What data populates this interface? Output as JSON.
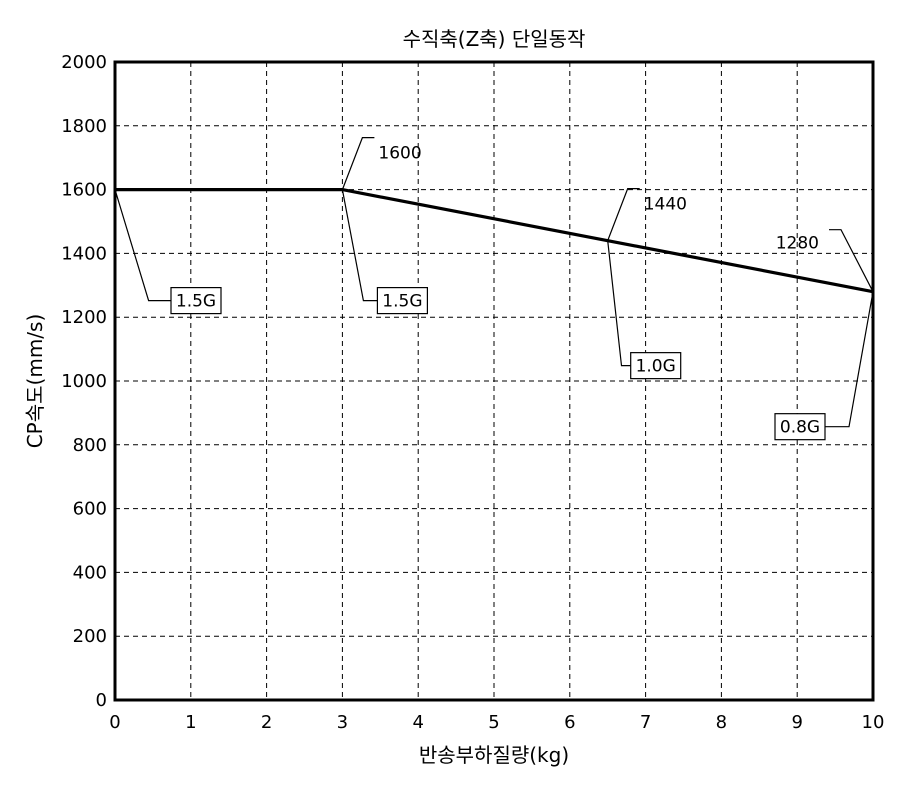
{
  "chart_data": {
    "type": "line",
    "title": "수직축(Z축) 단일동작",
    "xlabel": "반송부하질량(kg)",
    "ylabel": "CP속도(mm/s)",
    "xlim": [
      0,
      10
    ],
    "ylim": [
      0,
      2000
    ],
    "xticks": [
      0,
      1,
      2,
      3,
      4,
      5,
      6,
      7,
      8,
      9,
      10
    ],
    "yticks": [
      0,
      200,
      400,
      600,
      800,
      1000,
      1200,
      1400,
      1600,
      1800,
      2000
    ],
    "grid": true,
    "series": [
      {
        "x": [
          0,
          3,
          10
        ],
        "y": [
          1600,
          1600,
          1280
        ]
      }
    ],
    "value_labels": [
      {
        "text": "1600",
        "x": 3,
        "y": 1600
      },
      {
        "text": "1440",
        "x": 6.5,
        "y": 1440
      },
      {
        "text": "1280",
        "x": 10,
        "y": 1280
      }
    ],
    "accel_labels": [
      {
        "text": "1.5G",
        "x": 0,
        "y": 1600
      },
      {
        "text": "1.5G",
        "x": 3,
        "y": 1600
      },
      {
        "text": "1.0G",
        "x": 6.5,
        "y": 1440
      },
      {
        "text": "0.8G",
        "x": 10,
        "y": 1280
      }
    ]
  }
}
